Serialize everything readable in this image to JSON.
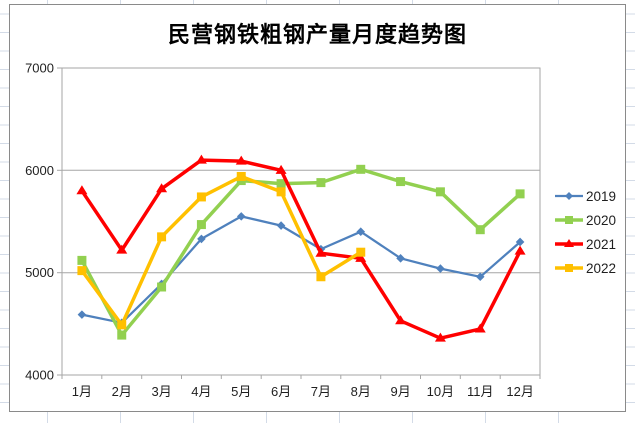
{
  "sheet": {
    "grid_color": "#d3dbe7",
    "background": "#ffffff"
  },
  "chart": {
    "title": "民营钢铁粗钢产量月度趋势图",
    "border_color": "#8a8a8a",
    "axis_color": "#a6a6a6",
    "text_color": "#1f1f1f"
  },
  "chart_data": {
    "type": "line",
    "title": "民营钢铁粗钢产量月度趋势图",
    "categories": [
      "1月",
      "2月",
      "3月",
      "4月",
      "5月",
      "6月",
      "7月",
      "8月",
      "9月",
      "10月",
      "11月",
      "12月"
    ],
    "series": [
      {
        "name": "2019",
        "color": "#4f81bd",
        "marker": "diamond",
        "line_width": 2.25,
        "values": [
          4590,
          4510,
          4890,
          5330,
          5550,
          5460,
          5230,
          5400,
          5140,
          5040,
          4960,
          5300
        ]
      },
      {
        "name": "2020",
        "color": "#92d050",
        "marker": "square",
        "line_width": 3.5,
        "values": [
          5120,
          4390,
          4860,
          5470,
          5900,
          5870,
          5880,
          6010,
          5890,
          5790,
          5420,
          5770
        ]
      },
      {
        "name": "2021",
        "color": "#ff0000",
        "marker": "triangle",
        "line_width": 3.5,
        "values": [
          5800,
          5220,
          5820,
          6100,
          6090,
          6000,
          5190,
          5140,
          4530,
          4360,
          4450,
          5210
        ]
      },
      {
        "name": "2022",
        "color": "#ffc000",
        "marker": "square",
        "line_width": 3.5,
        "values": [
          5020,
          4490,
          5350,
          5740,
          5940,
          5790,
          4960,
          5200
        ]
      }
    ],
    "ylim": [
      4000,
      7000
    ],
    "yticks": [
      4000,
      5000,
      6000,
      7000
    ],
    "grid": "horizontal-only",
    "legend_position": "right",
    "legend_entries": [
      "2019",
      "2020",
      "2021",
      "2022"
    ]
  }
}
